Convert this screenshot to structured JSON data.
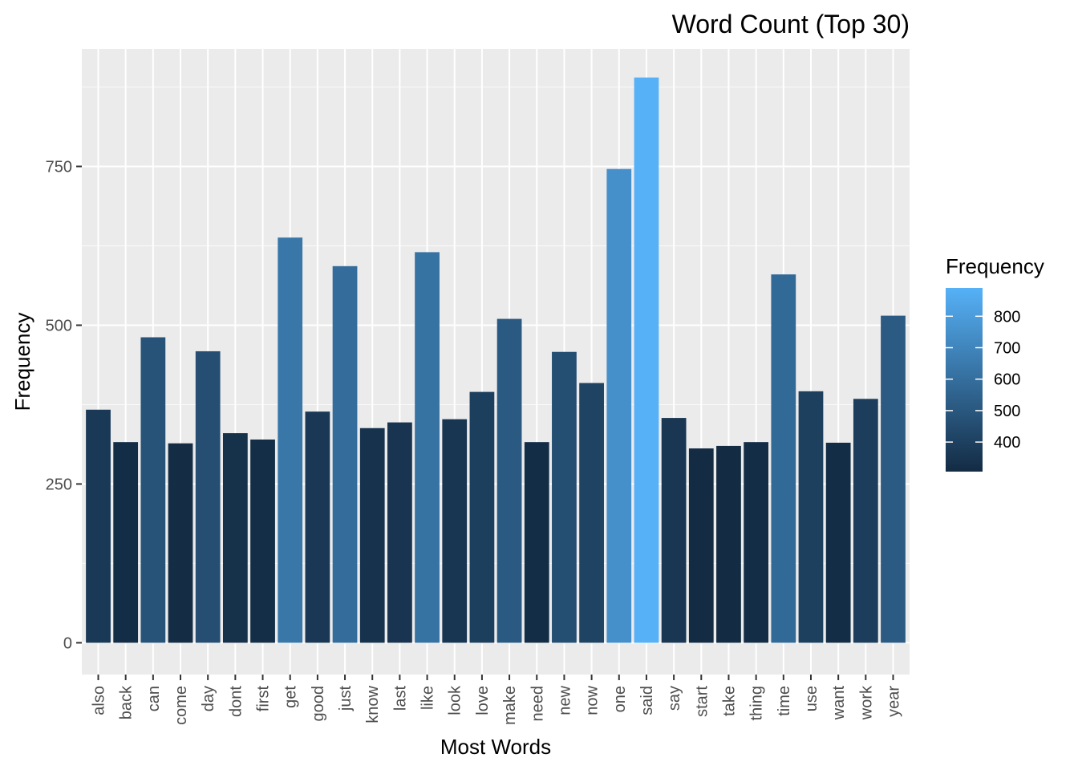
{
  "chart_data": {
    "type": "bar",
    "title": "Word Count (Top 30)",
    "xlabel": "Most Words",
    "ylabel": "Frequency",
    "categories": [
      "also",
      "back",
      "can",
      "come",
      "day",
      "dont",
      "first",
      "get",
      "good",
      "just",
      "know",
      "last",
      "like",
      "look",
      "love",
      "make",
      "need",
      "new",
      "now",
      "one",
      "said",
      "say",
      "start",
      "take",
      "thing",
      "time",
      "use",
      "want",
      "work",
      "year"
    ],
    "values": [
      367,
      316,
      481,
      314,
      459,
      330,
      320,
      638,
      364,
      593,
      338,
      347,
      615,
      352,
      395,
      510,
      316,
      458,
      409,
      746,
      890,
      354,
      306,
      310,
      316,
      580,
      396,
      315,
      384,
      515
    ],
    "ylim": [
      -50,
      935
    ],
    "yticks": [
      0,
      250,
      500,
      750
    ],
    "ytick_labels": [
      "0",
      "250",
      "500",
      "750"
    ],
    "grid": true,
    "legend": {
      "title": "Frequency",
      "position": "right",
      "type": "colorbar",
      "ticks": [
        400,
        500,
        600,
        700,
        800
      ],
      "tick_labels": [
        "400",
        "500",
        "600",
        "700",
        "800"
      ],
      "low_color": "#132B43",
      "high_color": "#56B1F7"
    },
    "colors": {
      "panel": "#EBEBEB",
      "grid_major": "#FFFFFF",
      "axis_text": "#4D4D4D"
    }
  }
}
